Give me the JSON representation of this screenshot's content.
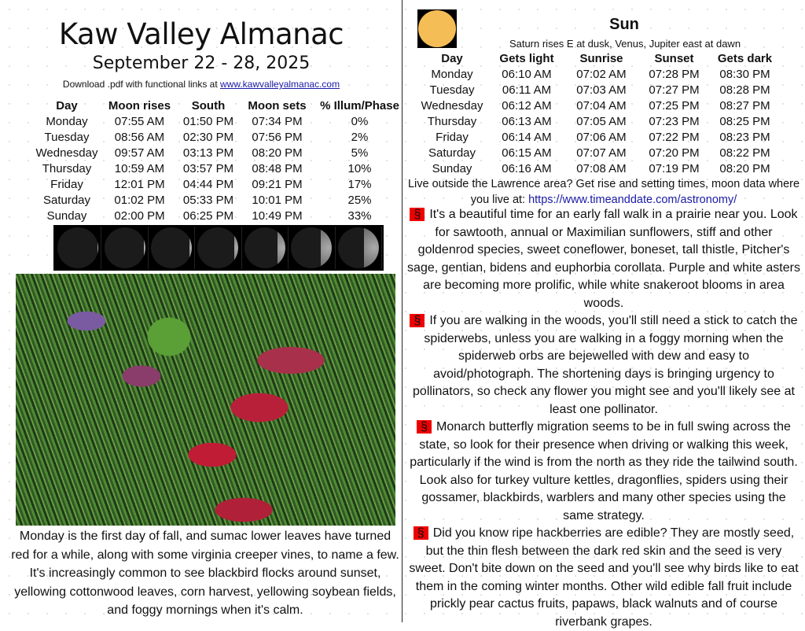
{
  "header": {
    "title": "Kaw Valley Almanac",
    "dates": "September 22 - 28, 2025",
    "download_text": "Download .pdf with functional links at ",
    "download_link": "www.kawvalleyalmanac.com"
  },
  "moon": {
    "columns": [
      "Day",
      "Moon rises",
      "South",
      "Moon sets",
      "% Illum/Phase"
    ],
    "rows": [
      [
        "Monday",
        "07:55 AM",
        "01:50 PM",
        "07:34 PM",
        "0%"
      ],
      [
        "Tuesday",
        "08:56 AM",
        "02:30 PM",
        "07:56 PM",
        "2%"
      ],
      [
        "Wednesday",
        "09:57 AM",
        "03:13 PM",
        "08:20 PM",
        "5%"
      ],
      [
        "Thursday",
        "10:59 AM",
        "03:57 PM",
        "08:48 PM",
        "10%"
      ],
      [
        "Friday",
        "12:01 PM",
        "04:44 PM",
        "09:21 PM",
        "17%"
      ],
      [
        "Saturday",
        "01:02 PM",
        "05:33 PM",
        "10:01 PM",
        "25%"
      ],
      [
        "Sunday",
        "02:00 PM",
        "06:25 PM",
        "10:49 PM",
        "33%"
      ]
    ],
    "phase_illumination": [
      0,
      2,
      5,
      10,
      17,
      25,
      33
    ]
  },
  "caption": "Monday is the first day of fall, and sumac lower leaves have turned red for a while, along with some virginia creeper vines, to name a few. It's increasingly common to see blackbird flocks around sunset, yellowing cottonwood leaves, corn harvest, yellowing soybean fields, and foggy mornings when it's calm.",
  "sun": {
    "title": "Sun",
    "subtitle": "Saturn rises E at dusk, Venus, Jupiter east at dawn",
    "columns": [
      "Day",
      "Gets light",
      "Sunrise",
      "Sunset",
      "Gets dark"
    ],
    "rows": [
      [
        "Monday",
        "06:10 AM",
        "07:02 AM",
        "07:28 PM",
        "08:30 PM"
      ],
      [
        "Tuesday",
        "06:11 AM",
        "07:03 AM",
        "07:27 PM",
        "08:28 PM"
      ],
      [
        "Wednesday",
        "06:12 AM",
        "07:04 AM",
        "07:25 PM",
        "08:27 PM"
      ],
      [
        "Thursday",
        "06:13 AM",
        "07:05 AM",
        "07:23 PM",
        "08:25 PM"
      ],
      [
        "Friday",
        "06:14 AM",
        "07:06 AM",
        "07:22 PM",
        "08:23 PM"
      ],
      [
        "Saturday",
        "06:15 AM",
        "07:07 AM",
        "07:20 PM",
        "08:22 PM"
      ],
      [
        "Sunday",
        "06:16 AM",
        "07:08 AM",
        "07:19 PM",
        "08:20 PM"
      ]
    ],
    "live_text": "Live outside the Lawrence area? Get rise and setting times, moon data where you live at: ",
    "live_link": "https://www.timeanddate.com/astronomy/"
  },
  "notes": {
    "marker": "§",
    "accent": "#ee0000",
    "items": [
      "It's a beautiful time for an early fall walk in a prairie near you. Look for sawtooth, annual or Maximilian sunflowers, stiff and other goldenrod species, sweet coneflower, boneset, tall thistle, Pitcher's sage, gentian, bidens and euphorbia corollata. Purple and white asters are becoming more prolific, while white snakeroot blooms in area woods.",
      "If you are walking in the woods, you'll still need a stick to catch the spiderwebs, unless you are walking in a foggy morning when the spiderweb orbs are bejewelled with dew and easy to avoid/photograph. The shortening days is bringing urgency to pollinators, so check any flower you might see and you'll likely see at least one pollinator.",
      "Monarch butterfly migration seems to be in full swing across the state, so look for their presence when driving or walking this week, particularly if the wind is from the north as they ride the tailwind south. Look also for turkey vulture kettles, dragonflies, spiders using their gossamer, blackbirds, warblers and many other species using the same strategy.",
      "Did you know ripe hackberries are edible? They are mostly seed, but the thin flesh between the dark red skin and the seed is very sweet. Don't bite down on the seed and you'll see why birds like to eat them in the coming winter months. Other wild edible fall fruit include prickly pear cactus fruits, papaws, black walnuts and of course riverbank grapes."
    ]
  }
}
